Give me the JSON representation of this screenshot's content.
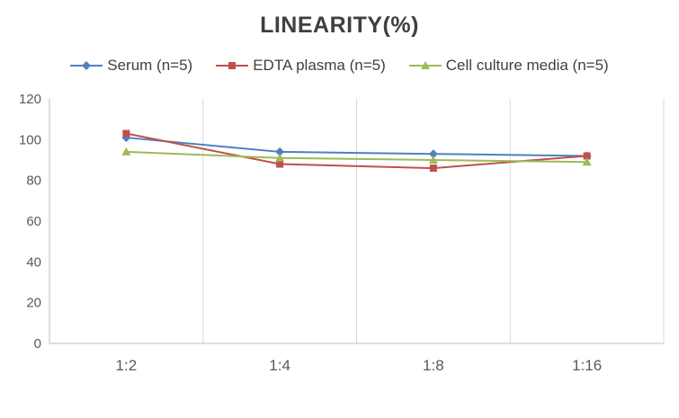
{
  "chart_data": {
    "type": "line",
    "title": "LINEARITY(%)",
    "categories": [
      "1:2",
      "1:4",
      "1:8",
      "1:16"
    ],
    "series": [
      {
        "name": "Serum (n=5)",
        "marker": "diamond",
        "color": "#4F81BD",
        "values": [
          101,
          94,
          93,
          92
        ]
      },
      {
        "name": "EDTA plasma (n=5)",
        "marker": "square",
        "color": "#C0504D",
        "values": [
          103,
          88,
          86,
          92
        ]
      },
      {
        "name": "Cell culture media (n=5)",
        "marker": "triangle",
        "color": "#9BBB59",
        "values": [
          94,
          91,
          90,
          89
        ]
      }
    ],
    "xlabel": "",
    "ylabel": "",
    "ylim": [
      0,
      120
    ],
    "ytick_step": 20,
    "yticks": [
      0,
      20,
      40,
      60,
      80,
      100,
      120
    ],
    "grid": "vertical-only",
    "legend_position": "top",
    "axis_color": "#BFBFBF",
    "grid_color": "#D9D9D9",
    "tick_label_color": "#595959",
    "title_color": "#3f3f3f"
  }
}
